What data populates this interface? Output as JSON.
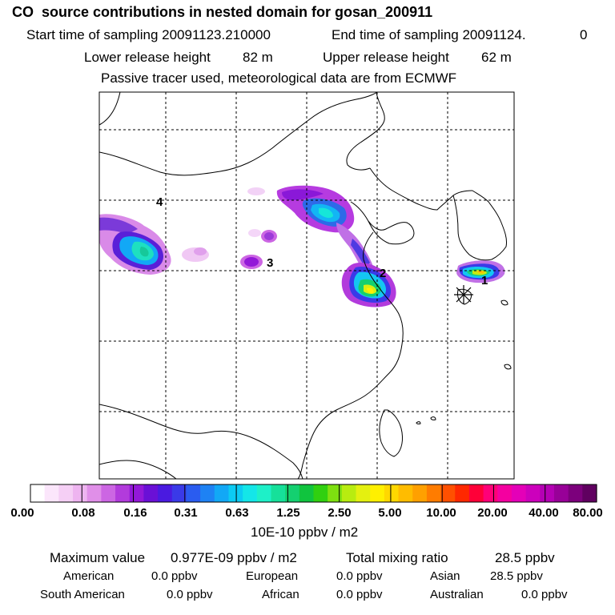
{
  "header": {
    "title": "CO  source contributions in nested domain for gosan_200911",
    "start_label": "Start time of sampling 20091123.210000",
    "end_label": "End time of sampling 20091124.",
    "end_value": "0",
    "lower_label": "Lower release height",
    "lower_value": "82 m",
    "upper_label": "Upper release height",
    "upper_value": "62 m",
    "tracer_note": "Passive tracer used, meteorological data are from ECMWF"
  },
  "map": {
    "cluster_labels": [
      "1",
      "2",
      "3",
      "4"
    ],
    "station_marker": "station-asterisk"
  },
  "colorbar": {
    "tick_labels": [
      "0.00",
      "0.08",
      "0.16",
      "0.31",
      "0.63",
      "1.25",
      "2.50",
      "5.00",
      "10.00",
      "20.00",
      "40.00",
      "80.00"
    ],
    "unit": "10E-10 ppbv / m2",
    "colors": [
      "#ffffff",
      "#fbe6fb",
      "#f5cff5",
      "#eeb4f0",
      "#e08fe8",
      "#cc66e3",
      "#b23bdc",
      "#9318d8",
      "#6a10d6",
      "#4a1ae0",
      "#3a3ae8",
      "#2a5cf0",
      "#1e82f4",
      "#12a8f6",
      "#0ccbf3",
      "#14e6e8",
      "#1ef0c8",
      "#16e09a",
      "#14d070",
      "#10c43e",
      "#30d010",
      "#7ee010",
      "#b8ec10",
      "#e4f010",
      "#fff000",
      "#ffd800",
      "#ffbc00",
      "#ffa000",
      "#ff7c00",
      "#ff5000",
      "#ff2800",
      "#ff0038",
      "#ff0078",
      "#f400a0",
      "#e400b8",
      "#cc00bc",
      "#b400b4",
      "#980098",
      "#7c007c",
      "#600060"
    ]
  },
  "summary": {
    "max_label": "Maximum value",
    "max_value": "0.977E-09 ppbv / m2",
    "total_label": "Total mixing ratio",
    "total_value": "28.5 ppbv",
    "american_label": "American",
    "american_value": "0.0 ppbv",
    "european_label": "European",
    "european_value": "0.0 ppbv",
    "asian_label": "Asian",
    "asian_value": "28.5 ppbv",
    "south_american_label": "South American",
    "south_american_value": "0.0 ppbv",
    "african_label": "African",
    "african_value": "0.0 ppbv",
    "australian_label": "Australian",
    "australian_value": "0.0 ppbv"
  }
}
